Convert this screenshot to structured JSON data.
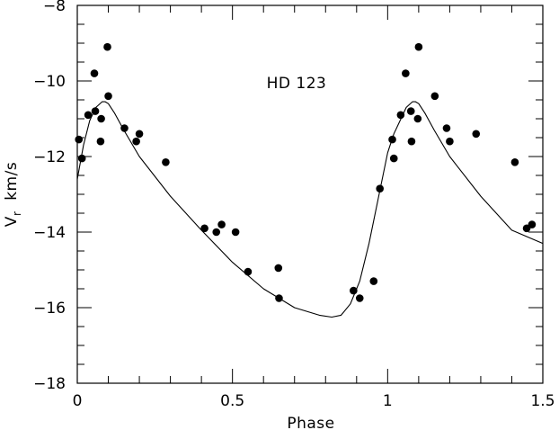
{
  "chart_data": {
    "type": "scatter",
    "title": "",
    "annotation": "HD 123",
    "xlabel": "Phase",
    "ylabel_main": "V",
    "ylabel_sub": "r",
    "ylabel_unit": "km/s",
    "xlim": [
      0,
      1.5
    ],
    "ylim": [
      -18,
      -8
    ],
    "x_ticks": [
      {
        "value": 0,
        "label": "0"
      },
      {
        "value": 0.5,
        "label": "0.5"
      },
      {
        "value": 1,
        "label": "1"
      },
      {
        "value": 1.5,
        "label": "1.5"
      }
    ],
    "x_minor_step": 0.1,
    "y_ticks": [
      {
        "value": -8,
        "label": "−8"
      },
      {
        "value": -10,
        "label": "−10"
      },
      {
        "value": -12,
        "label": "−12"
      },
      {
        "value": -14,
        "label": "−14"
      },
      {
        "value": -16,
        "label": "−16"
      },
      {
        "value": -18,
        "label": "−18"
      }
    ],
    "y_minor_step": 0.5,
    "grid": false,
    "series": [
      {
        "kind": "points",
        "marker": "filled-circle",
        "color": "#000000",
        "x": [
          0.005,
          0.015,
          0.035,
          0.055,
          0.058,
          0.075,
          0.077,
          0.097,
          0.1,
          0.152,
          0.19,
          0.2,
          0.285,
          0.41,
          0.448,
          0.465,
          0.51,
          0.55,
          0.648,
          0.65,
          0.89,
          0.91,
          0.955,
          0.975,
          1.015,
          1.02,
          1.042,
          1.058,
          1.075,
          1.077,
          1.097,
          1.1,
          1.152,
          1.19,
          1.2,
          1.285,
          1.41,
          1.448,
          1.465
        ],
        "y": [
          -11.55,
          -12.05,
          -10.9,
          -9.8,
          -10.8,
          -11.6,
          -11.0,
          -9.1,
          -10.4,
          -11.25,
          -11.6,
          -11.4,
          -12.15,
          -13.9,
          -14.0,
          -13.8,
          -14.0,
          -15.05,
          -14.95,
          -15.75,
          -15.55,
          -15.75,
          -15.3,
          -12.85,
          -11.55,
          -12.05,
          -10.9,
          -9.8,
          -10.8,
          -11.6,
          -11.0,
          -9.1,
          -10.4,
          -11.25,
          -11.6,
          -11.4,
          -12.15,
          -13.9,
          -13.8
        ]
      },
      {
        "kind": "curve",
        "color": "#000000",
        "x": [
          0.0,
          0.02,
          0.04,
          0.06,
          0.08,
          0.09,
          0.1,
          0.12,
          0.15,
          0.2,
          0.3,
          0.4,
          0.5,
          0.6,
          0.7,
          0.78,
          0.82,
          0.85,
          0.88,
          0.91,
          0.94,
          0.97,
          1.0,
          1.02,
          1.04,
          1.06,
          1.08,
          1.09,
          1.1,
          1.12,
          1.15,
          1.2,
          1.3,
          1.4,
          1.5
        ],
        "y": [
          -12.6,
          -11.7,
          -11.05,
          -10.7,
          -10.55,
          -10.55,
          -10.6,
          -10.85,
          -11.3,
          -12.0,
          -13.05,
          -13.95,
          -14.8,
          -15.5,
          -16.0,
          -16.2,
          -16.25,
          -16.2,
          -15.9,
          -15.3,
          -14.3,
          -13.1,
          -11.9,
          -11.4,
          -11.05,
          -10.7,
          -10.55,
          -10.55,
          -10.6,
          -10.85,
          -11.3,
          -12.0,
          -13.05,
          -13.95,
          -14.3
        ]
      }
    ]
  }
}
